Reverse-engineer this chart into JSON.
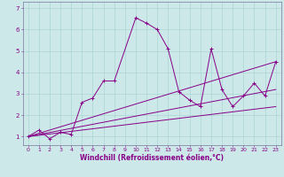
{
  "title": "",
  "xlabel": "Windchill (Refroidissement éolien,°C)",
  "background_color": "#cce8e8",
  "line_color": "#880088",
  "x_ticks": [
    0,
    1,
    2,
    3,
    4,
    5,
    6,
    7,
    8,
    9,
    10,
    11,
    12,
    13,
    14,
    15,
    16,
    17,
    18,
    19,
    20,
    21,
    22,
    23
  ],
  "y_ticks": [
    1,
    2,
    3,
    4,
    5,
    6,
    7
  ],
  "ylim": [
    0.6,
    7.3
  ],
  "xlim": [
    -0.5,
    23.5
  ],
  "series1_x": [
    0,
    1,
    2,
    3,
    4,
    5,
    6,
    7,
    8,
    10,
    11,
    12,
    13,
    14,
    15,
    16,
    17,
    18,
    19,
    20,
    21,
    22,
    23
  ],
  "series1_y": [
    1.0,
    1.3,
    0.9,
    1.2,
    1.1,
    2.6,
    2.8,
    3.6,
    3.6,
    6.55,
    6.3,
    6.0,
    5.1,
    3.1,
    2.7,
    2.4,
    5.1,
    3.2,
    2.4,
    2.9,
    3.5,
    2.9,
    4.5
  ],
  "series2_x": [
    0,
    23
  ],
  "series2_y": [
    1.0,
    2.4
  ],
  "series3_x": [
    0,
    23
  ],
  "series3_y": [
    1.0,
    3.2
  ],
  "series4_x": [
    0,
    23
  ],
  "series4_y": [
    1.0,
    4.5
  ],
  "grid_color": "#aad4d4",
  "tick_fontsize": 4.5,
  "xlabel_fontsize": 5.5
}
